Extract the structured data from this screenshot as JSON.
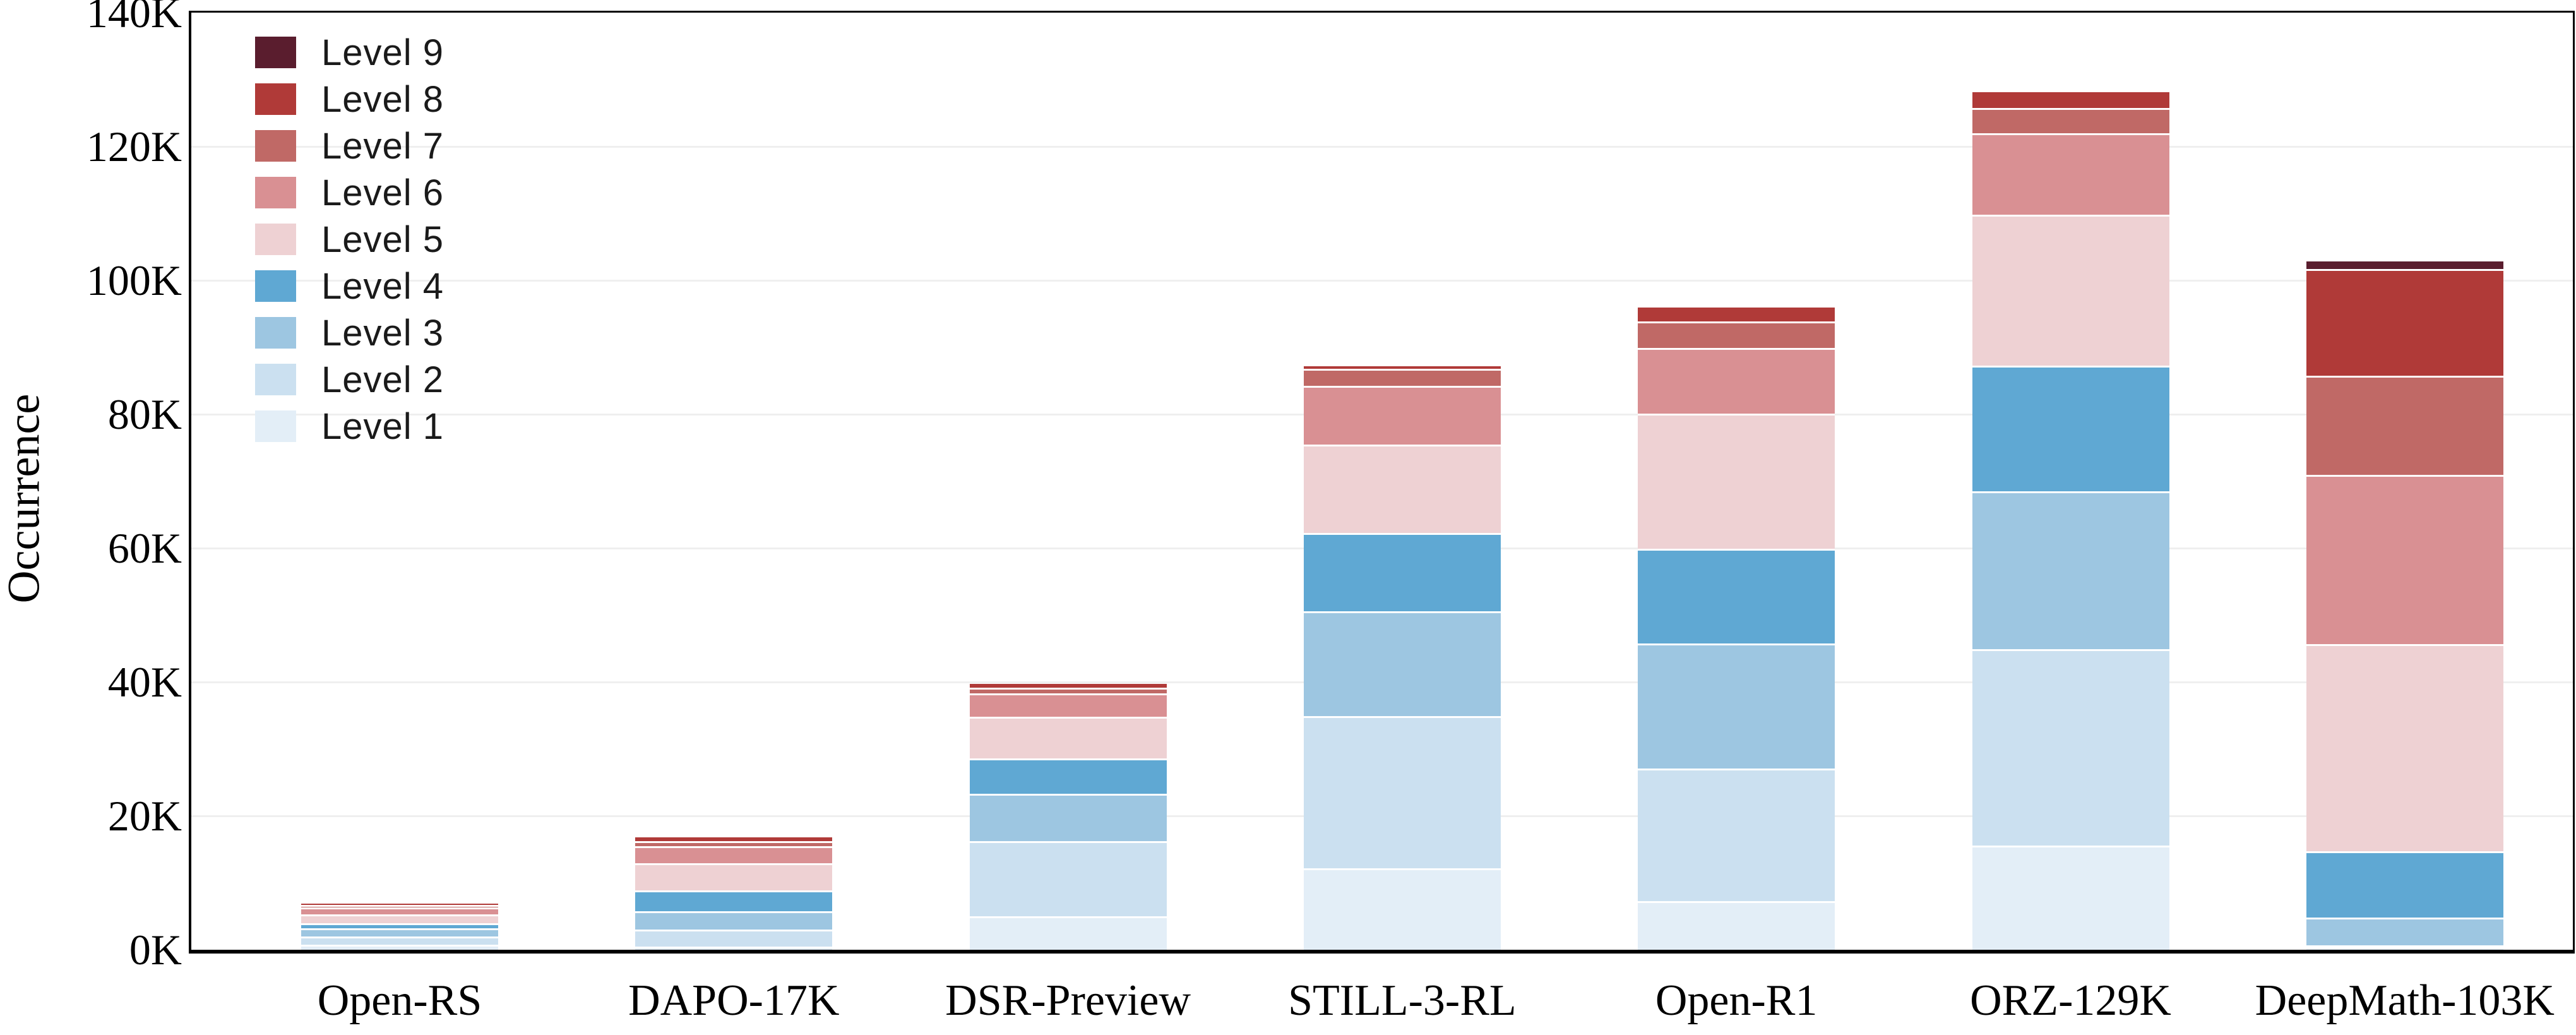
{
  "chart_data": {
    "type": "bar",
    "stacked": true,
    "title": "",
    "xlabel": "",
    "ylabel": "Occurrence",
    "grid": "horizontal",
    "legend_position": "upper-left",
    "legend_order_top_to_bottom": [
      "Level 9",
      "Level 8",
      "Level 7",
      "Level 6",
      "Level 5",
      "Level 4",
      "Level 3",
      "Level 2",
      "Level 1"
    ],
    "categories": [
      "Open-RS",
      "DAPO-17K",
      "DSR-Preview",
      "STILL-3-RL",
      "Open-R1",
      "ORZ-129K",
      "DeepMath-103K"
    ],
    "y_axis": {
      "min": 0,
      "max": 140000,
      "tick_step": 20000,
      "tick_labels": [
        "0K",
        "20K",
        "40K",
        "60K",
        "80K",
        "100K",
        "120K",
        "140K"
      ]
    },
    "series": [
      {
        "name": "Level 1",
        "color": "#e3eef7",
        "values": [
          500,
          200,
          4700,
          11900,
          7000,
          15300,
          100
        ]
      },
      {
        "name": "Level 2",
        "color": "#cbe0f0",
        "values": [
          1200,
          2500,
          11200,
          22700,
          19800,
          29300,
          300
        ]
      },
      {
        "name": "Level 3",
        "color": "#9dc6e1",
        "values": [
          1250,
          2800,
          7150,
          15700,
          18700,
          23600,
          4100
        ]
      },
      {
        "name": "Level 4",
        "color": "#5fa8d3",
        "values": [
          750,
          3050,
          5250,
          11700,
          14100,
          18800,
          9900
        ]
      },
      {
        "name": "Level 5",
        "color": "#eed1d3",
        "values": [
          1300,
          4050,
          6250,
          13200,
          20200,
          22500,
          31000
        ]
      },
      {
        "name": "Level 6",
        "color": "#d99093",
        "values": [
          1050,
          2600,
          3450,
          8800,
          9800,
          12200,
          25300
        ]
      },
      {
        "name": "Level 7",
        "color": "#c06966",
        "values": [
          350,
          750,
          850,
          2500,
          4000,
          3800,
          14800
        ]
      },
      {
        "name": "Level 8",
        "color": "#b03a38",
        "values": [
          450,
          850,
          900,
          700,
          2300,
          2600,
          15900
        ]
      },
      {
        "name": "Level 9",
        "color": "#5a1d2e",
        "values": [
          0,
          0,
          50,
          0,
          100,
          150,
          1400
        ]
      }
    ],
    "approx_totals": [
      6850,
      16800,
      39850,
      87200,
      96000,
      128250,
      102900
    ]
  }
}
